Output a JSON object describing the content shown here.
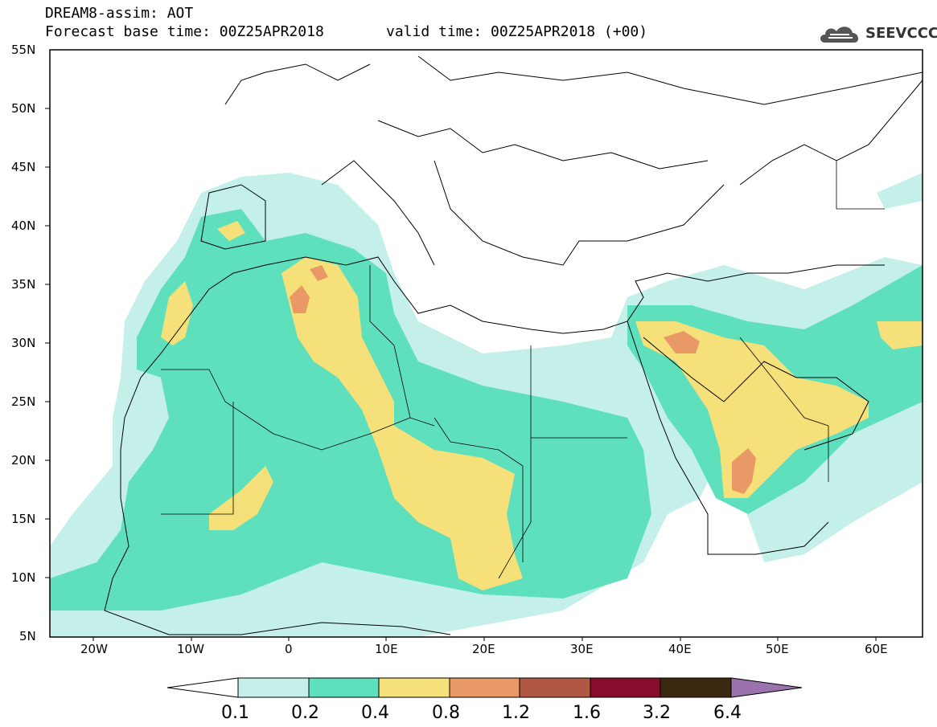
{
  "header": {
    "title": "DREAM8-assim: AOT",
    "base_time": "Forecast base time: 00Z25APR2018",
    "valid_time": "valid time: 00Z25APR2018 (+00)"
  },
  "logo": {
    "text": "SEEVCCC"
  },
  "map": {
    "lat_labels": [
      "55N",
      "50N",
      "45N",
      "40N",
      "35N",
      "30N",
      "25N",
      "20N",
      "15N",
      "10N",
      "5N"
    ],
    "lon_labels": [
      "20W",
      "10W",
      "0",
      "10E",
      "20E",
      "30E",
      "40E",
      "50E",
      "60E"
    ],
    "background": "#ffffff",
    "coastline_color": "#000000"
  },
  "colorbar": {
    "labels": [
      "0.1",
      "0.2",
      "0.4",
      "0.8",
      "1.2",
      "1.6",
      "3.2",
      "6.4"
    ],
    "colors": [
      "#ffffff",
      "#c5f0ea",
      "#5fe0bc",
      "#f6e07a",
      "#e89966",
      "#b05844",
      "#870d2c",
      "#3a2810",
      "#9a72ac"
    ]
  },
  "legend": {
    "levels": [
      {
        "range": "0.1–0.2",
        "color": "#c5f0ea"
      },
      {
        "range": "0.2–0.4",
        "color": "#5fe0bc"
      },
      {
        "range": "0.4–0.8",
        "color": "#f6e07a"
      },
      {
        "range": "0.8–1.2",
        "color": "#e89966"
      }
    ]
  }
}
